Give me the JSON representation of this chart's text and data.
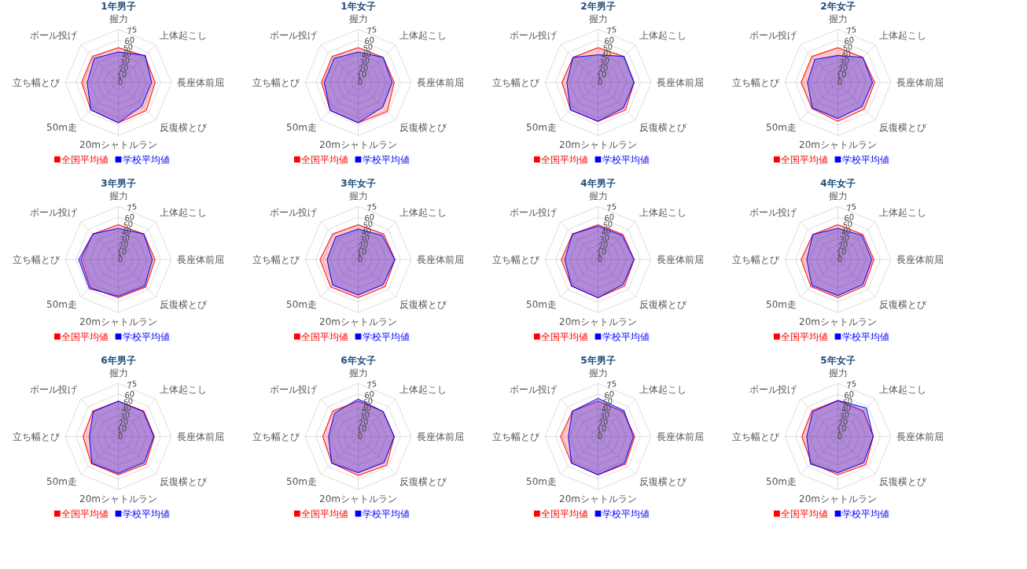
{
  "chart_data": [
    {
      "type": "radar",
      "title": "1年男子",
      "categories": [
        "握力",
        "上体起こし",
        "長座体前屈",
        "反復横とび",
        "20mシャトルラン",
        "50m走",
        "立ち幅とび",
        "ボール投げ"
      ],
      "ylim": [
        0,
        75
      ],
      "yticks": [
        0,
        10,
        20,
        30,
        40,
        50,
        60,
        75
      ],
      "grid": true,
      "legend": "bottom",
      "series": [
        {
          "name": "全国平均値",
          "color": "#ff0000",
          "values": [
            49,
            53,
            52,
            56,
            57,
            55,
            52,
            52
          ]
        },
        {
          "name": "学校平均値",
          "color": "#0000ff",
          "values": [
            43,
            54,
            47,
            47,
            57,
            55,
            44,
            48
          ]
        }
      ]
    },
    {
      "type": "radar",
      "title": "1年女子",
      "categories": [
        "握力",
        "上体起こし",
        "長座体前屈",
        "反復横とび",
        "20mシャトルラン",
        "50m走",
        "立ち幅とび",
        "ボール投げ"
      ],
      "ylim": [
        0,
        75
      ],
      "yticks": [
        0,
        10,
        20,
        30,
        40,
        50,
        60,
        75
      ],
      "grid": true,
      "legend": "bottom",
      "series": [
        {
          "name": "全国平均値",
          "color": "#ff0000",
          "values": [
            49,
            50,
            51,
            58,
            57,
            56,
            52,
            52
          ]
        },
        {
          "name": "学校平均値",
          "color": "#0000ff",
          "values": [
            43,
            50,
            48,
            49,
            57,
            56,
            48,
            48
          ]
        }
      ]
    },
    {
      "type": "radar",
      "title": "2年男子",
      "categories": [
        "握力",
        "上体起こし",
        "長座体前屈",
        "反復横とび",
        "20mシャトルラン",
        "50m走",
        "立ち幅とび",
        "ボール投げ"
      ],
      "ylim": [
        0,
        75
      ],
      "yticks": [
        0,
        10,
        20,
        30,
        40,
        50,
        60,
        75
      ],
      "grid": true,
      "legend": "bottom",
      "series": [
        {
          "name": "全国平均値",
          "color": "#ff0000",
          "values": [
            49,
            52,
            51,
            55,
            55,
            55,
            51,
            50
          ]
        },
        {
          "name": "学校平均値",
          "color": "#0000ff",
          "values": [
            39,
            52,
            51,
            51,
            55,
            55,
            44,
            50
          ]
        }
      ]
    },
    {
      "type": "radar",
      "title": "2年女子",
      "categories": [
        "握力",
        "上体起こし",
        "長座体前屈",
        "反復横とび",
        "20mシャトルラン",
        "50m走",
        "立ち幅とび",
        "ボール投げ"
      ],
      "ylim": [
        0,
        75
      ],
      "yticks": [
        0,
        10,
        20,
        30,
        40,
        50,
        60,
        75
      ],
      "grid": true,
      "legend": "bottom",
      "series": [
        {
          "name": "全国平均値",
          "color": "#ff0000",
          "values": [
            49,
            50,
            52,
            53,
            55,
            52,
            52,
            52
          ]
        },
        {
          "name": "学校平均値",
          "color": "#0000ff",
          "values": [
            38,
            50,
            49,
            48,
            51,
            51,
            43,
            46
          ]
        }
      ]
    },
    {
      "type": "radar",
      "title": "3年男子",
      "categories": [
        "握力",
        "上体起こし",
        "長座体前屈",
        "反復横とび",
        "20mシャトルラン",
        "50m走",
        "立ち幅とび",
        "ボール投げ"
      ],
      "ylim": [
        0,
        75
      ],
      "yticks": [
        0,
        10,
        20,
        30,
        40,
        50,
        60,
        75
      ],
      "grid": true,
      "legend": "bottom",
      "series": [
        {
          "name": "全国平均値",
          "color": "#ff0000",
          "values": [
            49,
            51,
            52,
            55,
            54,
            56,
            53,
            51
          ]
        },
        {
          "name": "学校平均値",
          "color": "#0000ff",
          "values": [
            44,
            51,
            48,
            53,
            52,
            58,
            56,
            51
          ]
        }
      ]
    },
    {
      "type": "radar",
      "title": "3年女子",
      "categories": [
        "握力",
        "上体起こし",
        "長座体前屈",
        "反復横とび",
        "20mシャトルラン",
        "50m走",
        "立ち幅とび",
        "ボール投げ"
      ],
      "ylim": [
        0,
        75
      ],
      "yticks": [
        0,
        10,
        20,
        30,
        40,
        50,
        60,
        75
      ],
      "grid": true,
      "legend": "bottom",
      "series": [
        {
          "name": "全国平均値",
          "color": "#ff0000",
          "values": [
            49,
            51,
            52,
            54,
            54,
            55,
            54,
            51
          ]
        },
        {
          "name": "学校平均値",
          "color": "#0000ff",
          "values": [
            43,
            48,
            52,
            50,
            50,
            51,
            44,
            45
          ]
        }
      ]
    },
    {
      "type": "radar",
      "title": "4年男子",
      "categories": [
        "握力",
        "上体起こし",
        "長座体前屈",
        "反復横とび",
        "20mシャトルラン",
        "50m走",
        "立ち幅とび",
        "ボール投げ"
      ],
      "ylim": [
        0,
        75
      ],
      "yticks": [
        0,
        10,
        20,
        30,
        40,
        50,
        60,
        75
      ],
      "grid": true,
      "legend": "bottom",
      "series": [
        {
          "name": "全国平均値",
          "color": "#ff0000",
          "values": [
            49,
            50,
            51,
            53,
            54,
            53,
            52,
            51
          ]
        },
        {
          "name": "学校平均値",
          "color": "#0000ff",
          "values": [
            47,
            48,
            51,
            50,
            54,
            53,
            47,
            51
          ]
        }
      ]
    },
    {
      "type": "radar",
      "title": "4年女子",
      "categories": [
        "握力",
        "上体起こし",
        "長座体前屈",
        "反復横とび",
        "20mシャトルラン",
        "50m走",
        "立ち幅とび",
        "ボール投げ"
      ],
      "ylim": [
        0,
        75
      ],
      "yticks": [
        0,
        10,
        20,
        30,
        40,
        50,
        60,
        75
      ],
      "grid": true,
      "legend": "bottom",
      "series": [
        {
          "name": "全国平均値",
          "color": "#ff0000",
          "values": [
            49,
            50,
            51,
            53,
            54,
            54,
            52,
            50
          ]
        },
        {
          "name": "学校平均値",
          "color": "#0000ff",
          "values": [
            44,
            48,
            48,
            50,
            51,
            52,
            44,
            50
          ]
        }
      ]
    },
    {
      "type": "radar",
      "title": "6年男子",
      "categories": [
        "握力",
        "上体起こし",
        "長座体前屈",
        "反復横とび",
        "20mシャトルラン",
        "50m走",
        "立ち幅とび",
        "ボール投げ"
      ],
      "ylim": [
        0,
        75
      ],
      "yticks": [
        0,
        10,
        20,
        30,
        40,
        50,
        60,
        75
      ],
      "grid": true,
      "legend": "bottom",
      "series": [
        {
          "name": "全国平均値",
          "color": "#ff0000",
          "values": [
            50,
            51,
            51,
            55,
            54,
            54,
            50,
            51
          ]
        },
        {
          "name": "学校平均値",
          "color": "#0000ff",
          "values": [
            50,
            50,
            50,
            52,
            52,
            53,
            41,
            50
          ]
        }
      ]
    },
    {
      "type": "radar",
      "title": "6年女子",
      "categories": [
        "握力",
        "上体起こし",
        "長座体前屈",
        "反復横とび",
        "20mシャトルラン",
        "50m走",
        "立ち幅とび",
        "ボール投げ"
      ],
      "ylim": [
        0,
        75
      ],
      "yticks": [
        0,
        10,
        20,
        30,
        40,
        50,
        60,
        75
      ],
      "grid": true,
      "legend": "bottom",
      "series": [
        {
          "name": "全国平均値",
          "color": "#ff0000",
          "values": [
            50,
            50,
            51,
            57,
            55,
            53,
            50,
            51
          ]
        },
        {
          "name": "学校平均値",
          "color": "#0000ff",
          "values": [
            53,
            50,
            51,
            52,
            51,
            53,
            42,
            47
          ]
        }
      ]
    },
    {
      "type": "radar",
      "title": "5年男子",
      "categories": [
        "握力",
        "上体起こし",
        "長座体前屈",
        "反復横とび",
        "20mシャトルラン",
        "50m走",
        "立ち幅とび",
        "ボール投げ"
      ],
      "ylim": [
        0,
        75
      ],
      "yticks": [
        0,
        10,
        20,
        30,
        40,
        50,
        60,
        75
      ],
      "grid": true,
      "legend": "bottom",
      "series": [
        {
          "name": "全国平均値",
          "color": "#ff0000",
          "values": [
            50,
            50,
            52,
            55,
            54,
            53,
            53,
            51
          ]
        },
        {
          "name": "学校平均値",
          "color": "#0000ff",
          "values": [
            54,
            52,
            50,
            53,
            54,
            53,
            42,
            51
          ]
        }
      ]
    },
    {
      "type": "radar",
      "title": "5年女子",
      "categories": [
        "握力",
        "上体起こし",
        "長座体前屈",
        "反復横とび",
        "20mシャトルラン",
        "50m走",
        "立ち幅とび",
        "ボール投げ"
      ],
      "ylim": [
        0,
        75
      ],
      "yticks": [
        0,
        10,
        20,
        30,
        40,
        50,
        60,
        75
      ],
      "grid": true,
      "legend": "bottom",
      "series": [
        {
          "name": "全国平均値",
          "color": "#ff0000",
          "values": [
            51,
            51,
            50,
            56,
            54,
            53,
            51,
            52
          ]
        },
        {
          "name": "学校平均値",
          "color": "#0000ff",
          "values": [
            51,
            57,
            50,
            52,
            51,
            55,
            44,
            50
          ]
        }
      ]
    }
  ]
}
